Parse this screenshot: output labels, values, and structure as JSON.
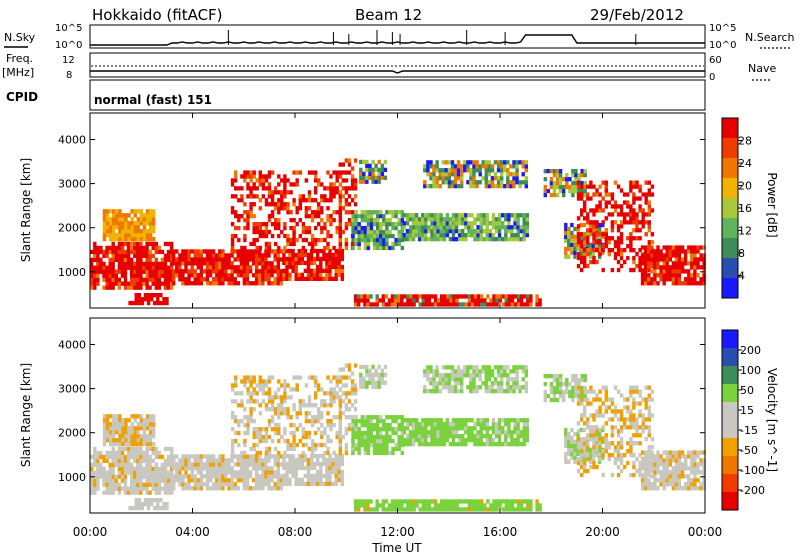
{
  "header": {
    "station": "Hokkaido (fitACF)",
    "beam": "Beam 12",
    "date": "29/Feb/2012"
  },
  "noise_panel": {
    "left_label": "N.Sky",
    "right_label": "N.Search",
    "ticks_left": [
      "10^5",
      "10^0"
    ],
    "ticks_right": [
      "10^5",
      "10^0"
    ]
  },
  "freq_panel": {
    "left_label_1": "Freq.",
    "left_label_2": "[MHz]",
    "right_label": "Nave",
    "ticks_left": [
      "12",
      "8"
    ],
    "ticks_right": [
      "60",
      "0"
    ]
  },
  "cpid": {
    "label": "CPID",
    "value": "normal (fast) 151"
  },
  "colors": {
    "power": [
      "#1a1aff",
      "#2a4db0",
      "#3d8c5a",
      "#5fb35a",
      "#a8c83c",
      "#f0b400",
      "#f07800",
      "#f03c00",
      "#e60000"
    ],
    "velocity": [
      "#e60000",
      "#f03c00",
      "#f07800",
      "#f0a000",
      "#c8c8c0",
      "#c8c8c0",
      "#7ad23c",
      "#3d8c5a",
      "#2a4db0",
      "#1a1aff"
    ]
  },
  "chart_data": [
    {
      "type": "heatmap",
      "name": "power",
      "xlabel": "",
      "ylabel": "Slant Range [km]",
      "ylim": [
        180,
        4600
      ],
      "xlim": [
        0,
        24
      ],
      "y_ticks": [
        1000,
        2000,
        3000,
        4000
      ],
      "colorbar_label": "Power [dB]",
      "colorbar_ticks": [
        4,
        8,
        12,
        16,
        20,
        24,
        28
      ],
      "colorbar_range": [
        0,
        32
      ]
    },
    {
      "type": "heatmap",
      "name": "velocity",
      "xlabel": "Time UT",
      "ylabel": "Slant Range [km]",
      "ylim": [
        180,
        4600
      ],
      "xlim": [
        0,
        24
      ],
      "x_ticks": [
        "00:00",
        "04:00",
        "08:00",
        "12:00",
        "16:00",
        "20:00",
        "00:00"
      ],
      "y_ticks": [
        1000,
        2000,
        3000,
        4000
      ],
      "colorbar_label": "Velocity [m s^-1]",
      "colorbar_ticks": [
        -200,
        -100,
        -50,
        -15,
        15,
        50,
        100,
        200
      ]
    }
  ]
}
